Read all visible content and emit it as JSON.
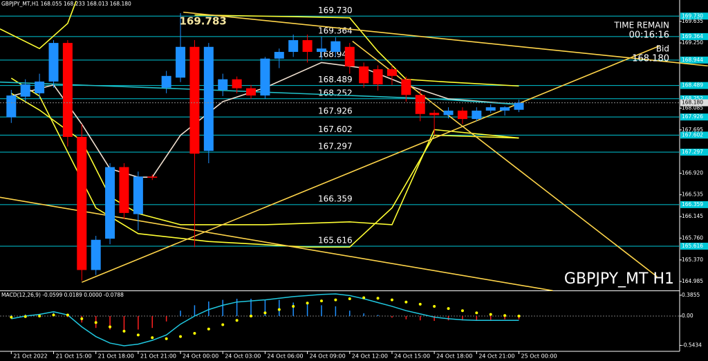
{
  "chart_data": [
    {
      "type": "candlestick",
      "title": "GBPJPY_MT,H1  168.055 168.233 168.013 168.180",
      "watermark": "GBPJPY_MT H1",
      "time_remain_label": "TIME REMAIN",
      "time_remain": "00:16:16",
      "bid_label": "Bid",
      "bid": {
        "value": 168.18,
        "label": "168.180"
      },
      "up_color": "#1e90ff",
      "down_color": "#ff0000",
      "level_color": "#00c8d8",
      "xlim": [
        -0.8,
        47.4
      ],
      "ylim": [
        164.824,
        170.018
      ],
      "xticks": [
        {
          "value": 0,
          "label": "21 Oct 2022"
        },
        {
          "value": 3,
          "label": "21 Oct 15:00"
        },
        {
          "value": 6,
          "label": "21 Oct 18:00"
        },
        {
          "value": 9,
          "label": "21 Oct 21:00"
        },
        {
          "value": 12,
          "label": "24 Oct 00:00"
        },
        {
          "value": 15,
          "label": "24 Oct 03:00"
        },
        {
          "value": 18,
          "label": "24 Oct 06:00"
        },
        {
          "value": 21,
          "label": "24 Oct 09:00"
        },
        {
          "value": 24,
          "label": "24 Oct 12:00"
        },
        {
          "value": 27,
          "label": "24 Oct 15:00"
        },
        {
          "value": 30,
          "label": "24 Oct 18:00"
        },
        {
          "value": 33,
          "label": "24 Oct 21:00"
        },
        {
          "value": 36,
          "label": "25 Oct 00:00"
        }
      ],
      "yticks": [
        {
          "value": 169.635,
          "label": "169.635"
        },
        {
          "value": 169.25,
          "label": "169.250"
        },
        {
          "value": 168.085,
          "label": "168.085"
        },
        {
          "value": 167.695,
          "label": "167.695"
        },
        {
          "value": 166.92,
          "label": "166.920"
        },
        {
          "value": 166.535,
          "label": "166.535"
        },
        {
          "value": 166.145,
          "label": "166.145"
        },
        {
          "value": 165.76,
          "label": "165.760"
        },
        {
          "value": 165.37,
          "label": "165.370"
        },
        {
          "value": 164.985,
          "label": "164.985"
        }
      ],
      "levels": [
        {
          "value": 169.73,
          "label": "169.730"
        },
        {
          "value": 169.364,
          "label": "169.364"
        },
        {
          "value": 168.944,
          "label": "168.944"
        },
        {
          "value": 168.489,
          "label": "168.489"
        },
        {
          "value": 168.252,
          "label": "168.252"
        },
        {
          "value": 167.926,
          "label": "167.926"
        },
        {
          "value": 167.602,
          "label": "167.602"
        },
        {
          "value": 167.297,
          "label": "167.297"
        },
        {
          "value": 166.359,
          "label": "166.359"
        },
        {
          "value": 165.616,
          "label": "165.616"
        }
      ],
      "annotations": [
        {
          "text": "169.783",
          "x": 13.6,
          "y": 169.783
        }
      ],
      "open": [
        167.92,
        168.29,
        168.35,
        168.56,
        169.25,
        167.57,
        165.19,
        165.75,
        167.03,
        166.19,
        166.86,
        168.45,
        168.63,
        169.18,
        167.32,
        168.41,
        168.6,
        168.44,
        168.31,
        168.97,
        169.09,
        169.3,
        169.09,
        169.09,
        169.18,
        168.83,
        168.78,
        168.78,
        168.6,
        168.32,
        168.0,
        167.96,
        168.04,
        167.89,
        168.04,
        168.04,
        168.055
      ],
      "high": [
        168.41,
        168.6,
        168.7,
        169.3,
        169.3,
        167.8,
        165.8,
        167.1,
        167.1,
        166.95,
        166.9,
        168.75,
        169.783,
        169.3,
        169.25,
        168.7,
        168.65,
        168.5,
        169.0,
        169.15,
        169.4,
        169.4,
        169.36,
        169.35,
        169.25,
        168.9,
        168.85,
        168.85,
        168.65,
        168.4,
        168.05,
        168.1,
        168.1,
        168.1,
        168.15,
        168.12,
        168.233
      ],
      "low": [
        167.82,
        168.2,
        168.25,
        168.45,
        167.4,
        165.0,
        165.1,
        165.65,
        166.1,
        165.9,
        166.8,
        168.35,
        168.55,
        165.6,
        167.1,
        168.3,
        168.35,
        168.25,
        168.25,
        168.8,
        169.0,
        168.9,
        168.95,
        169.0,
        168.7,
        168.45,
        168.4,
        168.5,
        168.2,
        167.85,
        167.6,
        167.9,
        167.8,
        167.85,
        168.0,
        167.95,
        168.013
      ],
      "close": [
        168.31,
        168.51,
        168.56,
        169.25,
        167.57,
        165.19,
        165.73,
        167.03,
        166.21,
        166.86,
        166.84,
        168.66,
        169.18,
        167.27,
        169.18,
        168.6,
        168.44,
        168.31,
        168.97,
        169.09,
        169.3,
        169.09,
        169.15,
        169.28,
        168.83,
        168.53,
        168.51,
        168.66,
        168.32,
        167.98,
        167.96,
        168.04,
        167.89,
        168.04,
        168.1,
        168.1,
        168.18
      ],
      "overlays": [
        {
          "color": "#ffff33",
          "x": [
            0,
            2,
            6,
            9,
            14,
            21,
            24,
            27,
            30,
            36
          ],
          "values": [
            168.62,
            168.3,
            166.3,
            165.84,
            165.7,
            165.6,
            165.6,
            166.3,
            167.6,
            167.55
          ]
        },
        {
          "color": "#ffff33",
          "x": [
            -0.8,
            2,
            4,
            4.6
          ],
          "values": [
            169.5,
            169.15,
            169.6,
            170.0
          ]
        },
        {
          "color": "#ffff33",
          "x": [
            13,
            20,
            24,
            26,
            28,
            31,
            36
          ],
          "values": [
            169.75,
            169.72,
            169.7,
            169.1,
            168.6,
            168.55,
            168.48
          ]
        },
        {
          "color": "#ffff33",
          "x": [
            0,
            2,
            5,
            7,
            9,
            12,
            18,
            24,
            27,
            30,
            36
          ],
          "values": [
            168.35,
            168.05,
            167.5,
            166.5,
            166.2,
            166.0,
            166.0,
            166.05,
            166.0,
            167.7,
            167.55
          ]
        },
        {
          "color": "#f0e0d0",
          "x": [
            0,
            3,
            5,
            7,
            9,
            10,
            12,
            15,
            18,
            22,
            25,
            28,
            31,
            36
          ],
          "values": [
            168.3,
            168.5,
            167.8,
            167.0,
            166.85,
            166.85,
            167.6,
            168.2,
            168.45,
            168.9,
            168.8,
            168.5,
            168.25,
            168.15
          ]
        },
        {
          "color": "#20c0c8",
          "x": [
            -0.8,
            10,
            20,
            30,
            36
          ],
          "values": [
            168.55,
            168.45,
            168.35,
            168.25,
            168.15
          ]
        },
        {
          "color": "#ffd54a",
          "x": [
            12.2,
            49.4
          ],
          "values": [
            169.8,
            168.84
          ]
        },
        {
          "color": "#ffd54a",
          "x": [
            5,
            46
          ],
          "values": [
            164.97,
            169.2
          ]
        },
        {
          "color": "#ffd54a",
          "x": [
            -0.8,
            38.4
          ],
          "values": [
            166.49,
            164.82
          ]
        },
        {
          "color": "#ffd54a",
          "x": [
            24.2,
            45.8
          ],
          "values": [
            169.28,
            165.07
          ]
        }
      ]
    },
    {
      "type": "macd",
      "title": "MACD(12,26,9) -0.0599 0.0189 0.0000 -0.0788",
      "ylim": [
        -0.6146,
        0.461
      ],
      "yticks": [
        0.3855,
        {
          "value": 0,
          "label": "0.00"
        },
        -0.5434
      ],
      "up_color": "#1e90ff",
      "down_color": "#ff2020",
      "line_color": "#20c8e0",
      "signal_color": "#ffff00",
      "values": [
        0.02,
        0.03,
        0.04,
        0.06,
        -0.02,
        -0.12,
        -0.22,
        -0.25,
        -0.27,
        -0.25,
        -0.22,
        -0.1,
        0.1,
        0.2,
        0.27,
        0.3,
        0.32,
        0.32,
        0.3,
        0.3,
        0.25,
        0.22,
        0.2,
        0.18,
        0.1,
        0.05,
        0.02,
        -0.03,
        -0.06,
        -0.08,
        -0.09,
        -0.08,
        -0.08,
        -0.07,
        -0.07,
        -0.06,
        -0.06
      ],
      "line": [
        -0.05,
        0.0,
        0.03,
        0.08,
        0.02,
        -0.2,
        -0.38,
        -0.5,
        -0.55,
        -0.52,
        -0.45,
        -0.35,
        -0.15,
        0.0,
        0.12,
        0.2,
        0.26,
        0.28,
        0.3,
        0.33,
        0.36,
        0.38,
        0.4,
        0.41,
        0.38,
        0.32,
        0.25,
        0.18,
        0.1,
        0.04,
        -0.02,
        -0.05,
        -0.07,
        -0.08,
        -0.08,
        -0.08,
        -0.08
      ],
      "signal": [
        -0.02,
        -0.01,
        0.0,
        0.02,
        0.02,
        -0.05,
        -0.12,
        -0.2,
        -0.28,
        -0.35,
        -0.4,
        -0.42,
        -0.38,
        -0.32,
        -0.24,
        -0.16,
        -0.08,
        0.0,
        0.06,
        0.12,
        0.18,
        0.24,
        0.28,
        0.3,
        0.32,
        0.34,
        0.33,
        0.3,
        0.26,
        0.22,
        0.18,
        0.14,
        0.1,
        0.06,
        0.03,
        0.01,
        0.0
      ]
    }
  ]
}
